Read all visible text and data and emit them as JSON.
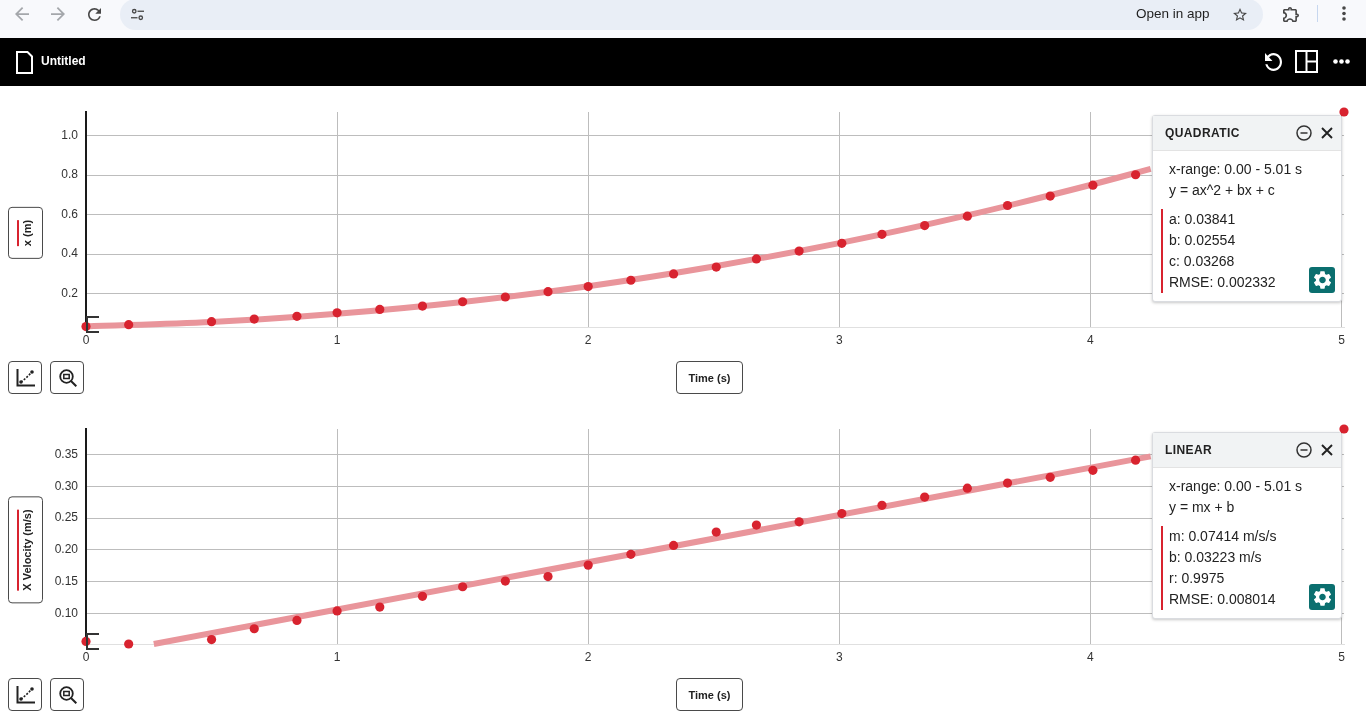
{
  "chart_data": [
    {
      "type": "other",
      "title": "Untitled",
      "annotations": [
        "Open in app"
      ]
    },
    {
      "type": "scatter",
      "xlabel": "Time (s)",
      "ylabel": "x (m)",
      "x": [
        0,
        0.17,
        0.5,
        0.67,
        0.84,
        1.0,
        1.17,
        1.34,
        1.5,
        1.67,
        1.84,
        2.0,
        2.17,
        2.34,
        2.51,
        2.67,
        2.84,
        3.01,
        3.17,
        3.34,
        3.51,
        3.67,
        3.84,
        4.01,
        4.18,
        4.34,
        4.51,
        4.68,
        4.84,
        5.01
      ],
      "series": [
        {
          "color": "#d8232f",
          "marker": "circle",
          "values": [
            0.032,
            0.042,
            0.057,
            0.07,
            0.084,
            0.102,
            0.119,
            0.136,
            0.158,
            0.182,
            0.209,
            0.235,
            0.267,
            0.299,
            0.334,
            0.375,
            0.415,
            0.454,
            0.5,
            0.544,
            0.592,
            0.646,
            0.694,
            0.749,
            0.802,
            null,
            null,
            null,
            null,
            1.12
          ]
        },
        {
          "type": "line",
          "color": "#e9959b",
          "marker": "none",
          "x": [
            0,
            0.5,
            1,
            1.5,
            2,
            2.5,
            3,
            3.5,
            4,
            4.24
          ],
          "values": [
            0.033,
            0.055,
            0.097,
            0.157,
            0.237,
            0.337,
            0.455,
            0.593,
            0.75,
            0.832
          ]
        }
      ],
      "xlim": [
        0,
        5.01
      ],
      "xticks": [
        0,
        1,
        2,
        3,
        4,
        5
      ],
      "ylim": [
        0.03,
        1.12
      ],
      "yticks": [
        0.2,
        0.4,
        0.6,
        0.8,
        {
          "value": 1,
          "label": "1.0"
        }
      ],
      "grid": true,
      "annotations": [
        "QUADRATIC",
        "x-range: 0.00 - 5.01 s",
        "y = ax^2 + bx + c",
        "a: 0.03841",
        "b: 0.02554",
        "c: 0.03268",
        "RMSE: 0.002332"
      ]
    },
    {
      "type": "scatter",
      "xlabel": "Time (s)",
      "ylabel": "X Velocity (m/s)",
      "x": [
        0,
        0.17,
        0.5,
        0.67,
        0.84,
        1.0,
        1.17,
        1.34,
        1.5,
        1.67,
        1.84,
        2.0,
        2.17,
        2.34,
        2.51,
        2.67,
        2.84,
        3.01,
        3.17,
        3.34,
        3.51,
        3.67,
        3.84,
        4.01,
        4.18,
        4.34,
        4.51,
        4.68,
        4.84,
        5.01
      ],
      "series": [
        {
          "color": "#d8232f",
          "marker": "circle",
          "values": [
            0.056,
            0.052,
            0.059,
            0.076,
            0.089,
            0.104,
            0.11,
            0.127,
            0.142,
            0.151,
            0.158,
            0.176,
            0.193,
            0.207,
            0.228,
            0.239,
            0.244,
            0.257,
            0.27,
            0.283,
            0.297,
            0.305,
            0.314,
            0.325,
            0.341,
            null,
            null,
            null,
            null,
            0.39
          ]
        },
        {
          "type": "line",
          "color": "#e9959b",
          "marker": "none",
          "x": [
            0.27,
            4.24
          ],
          "values": [
            0.052,
            0.347
          ]
        }
      ],
      "xlim": [
        0,
        5.01
      ],
      "xticks": [
        0,
        1,
        2,
        3,
        4,
        5
      ],
      "ylim": [
        0.052,
        0.39
      ],
      "yticks": [
        {
          "value": 0.1,
          "label": "0.10"
        },
        0.15,
        {
          "value": 0.2,
          "label": "0.20"
        },
        0.25,
        {
          "value": 0.3,
          "label": "0.30"
        },
        0.35
      ],
      "grid": true,
      "annotations": [
        "LINEAR",
        "x-range: 0.00 - 5.01 s",
        "y = mx + b",
        "m: 0.07414 m/s/s",
        "b: 0.03223 m/s",
        "r: 0.9975",
        "RMSE: 0.008014"
      ]
    }
  ]
}
